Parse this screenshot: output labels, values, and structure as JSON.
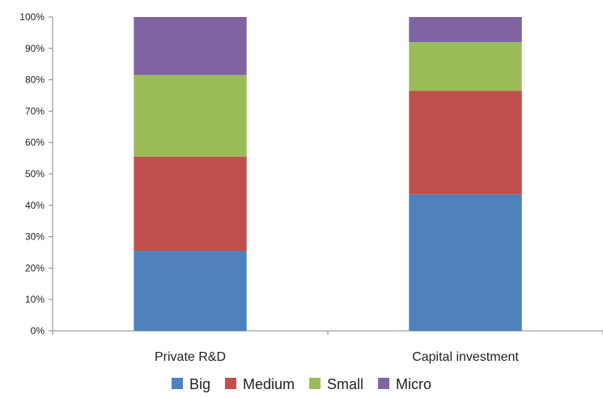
{
  "chart_data": {
    "type": "bar",
    "stacked": true,
    "normalized": true,
    "title": "",
    "xlabel": "",
    "ylabel": "",
    "ylim": [
      0,
      100
    ],
    "y_ticks": [
      "0%",
      "10%",
      "20%",
      "30%",
      "40%",
      "50%",
      "60%",
      "70%",
      "80%",
      "90%",
      "100%"
    ],
    "categories": [
      "Private R&D",
      "Capital investment"
    ],
    "series": [
      {
        "name": "Big",
        "color": "#4F81BD",
        "values": [
          25.5,
          43.5
        ]
      },
      {
        "name": "Medium",
        "color": "#C0504D",
        "values": [
          30,
          33
        ]
      },
      {
        "name": "Small",
        "color": "#9BBB59",
        "values": [
          26,
          15.5
        ]
      },
      {
        "name": "Micro",
        "color": "#8064A2",
        "values": [
          18.5,
          8
        ]
      }
    ],
    "grid": false,
    "legend_position": "bottom"
  }
}
